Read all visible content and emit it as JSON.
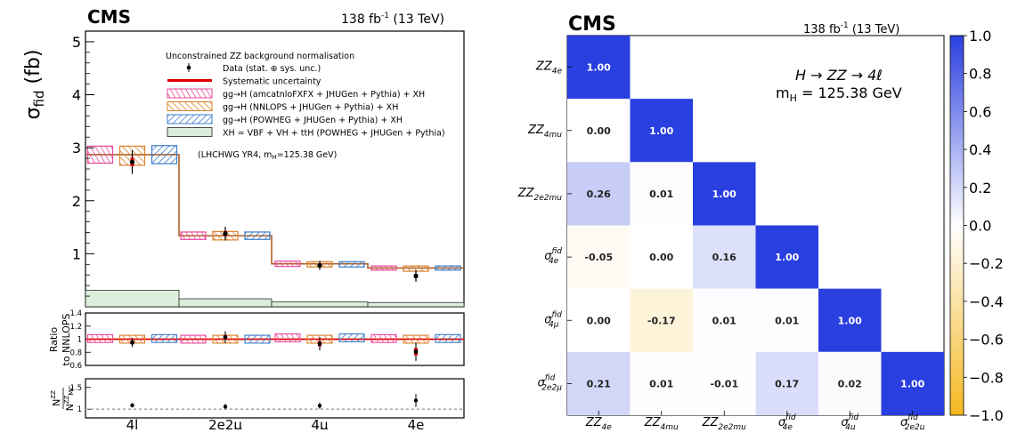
{
  "chart_data": [
    {
      "type": "bar",
      "experiment": "CMS",
      "lumi_label": "138 fb",
      "lumi_exp": "-1",
      "lumi_suffix": " (13 TeV)",
      "ylabel_main": "σ",
      "ylabel_sub": "fid",
      "ylabel_unit": " (fb)",
      "ratio_ylabel_1": "Ratio",
      "ratio_ylabel_2": "to NNLOPS",
      "norm_ylabel_num": "N",
      "norm_ylabel_den": "N",
      "norm_sup": "ZZ",
      "norm_sub_num": "",
      "norm_sub_den": "MC",
      "categories": [
        "4l",
        "2e2μ",
        "4μ",
        "4e"
      ],
      "ylim": [
        0,
        5.2
      ],
      "ratio_ylim": [
        0.6,
        1.4
      ],
      "norm_ylim": [
        0.8,
        1.7
      ],
      "legend": {
        "title": "Unconstrained ZZ background normalisation",
        "entries": [
          {
            "key": "data",
            "label": "Data (stat. ⊕ sys. unc.)"
          },
          {
            "key": "sys",
            "label": "Systematic uncertainty"
          },
          {
            "key": "amc",
            "label": "gg→H (amcatnloFXFX + JHUGen + Pythia) + XH"
          },
          {
            "key": "nnlops",
            "label": "gg→H (NNLOPS + JHUGen + Pythia) + XH"
          },
          {
            "key": "powheg",
            "label": "gg→H (POWHEG + JHUGen + Pythia) + XH"
          },
          {
            "key": "xh",
            "label": "XH = VBF + VH + ttH (POWHEG + JHUGen + Pythia)"
          }
        ],
        "note": "(LHCHWG YR4, m",
        "note_sub": "H",
        "note_tail": "=125.38 GeV)"
      },
      "colors": {
        "amc": "#e8489a",
        "nnlops": "#d9822b",
        "powheg": "#3d7cc9",
        "xh": "#dbeedb",
        "sys": "#e00000",
        "step": "#b0602a"
      },
      "series": [
        {
          "key": "data",
          "values": [
            2.73,
            1.38,
            0.78,
            0.58
          ],
          "stat_err": [
            0.21,
            0.12,
            0.08,
            0.1
          ],
          "sys_err": [
            0.08,
            0.05,
            0.03,
            0.04
          ]
        },
        {
          "key": "amc",
          "values": [
            2.87,
            1.34,
            0.81,
            0.73
          ],
          "unc": [
            0.16,
            0.07,
            0.05,
            0.04
          ]
        },
        {
          "key": "nnlops",
          "values": [
            2.85,
            1.34,
            0.8,
            0.72
          ],
          "unc": [
            0.18,
            0.08,
            0.05,
            0.05
          ]
        },
        {
          "key": "powheg",
          "values": [
            2.87,
            1.34,
            0.8,
            0.73
          ],
          "unc": [
            0.17,
            0.07,
            0.05,
            0.04
          ]
        },
        {
          "key": "xh",
          "values": [
            0.31,
            0.15,
            0.09,
            0.08
          ]
        }
      ],
      "step_values": [
        2.87,
        1.34,
        0.81,
        0.73
      ],
      "ratio": {
        "data": [
          0.95,
          1.03,
          0.93,
          0.81
        ],
        "data_err": [
          0.07,
          0.09,
          0.1,
          0.14
        ],
        "amc": [
          1.01,
          1.0,
          1.02,
          1.01
        ],
        "nnlops": [
          1.0,
          1.0,
          1.0,
          1.0
        ],
        "powheg": [
          1.01,
          1.0,
          1.02,
          1.01
        ],
        "unc": [
          0.06,
          0.06,
          0.06,
          0.06
        ]
      },
      "norm": {
        "values": [
          1.09,
          1.06,
          1.08,
          1.2
        ],
        "err": [
          0.05,
          0.06,
          0.07,
          0.15
        ]
      }
    },
    {
      "type": "heatmap",
      "experiment": "CMS",
      "lumi_label": "138 fb",
      "lumi_exp": "-1",
      "lumi_suffix": " (13 TeV)",
      "annotation_line1": "H → ZZ → 4ℓ",
      "annotation_line2": "m",
      "annotation_line2_sub": "H",
      "annotation_line2_tail": " = 125.38 GeV",
      "row_labels": [
        {
          "base": "ZZ",
          "sub": "4e",
          "sup": ""
        },
        {
          "base": "ZZ",
          "sub": "4mu",
          "sup": ""
        },
        {
          "base": "ZZ",
          "sub": "2e2mu",
          "sup": ""
        },
        {
          "base": "σ",
          "sub": "4e",
          "sup": "fid"
        },
        {
          "base": "σ",
          "sub": "4μ",
          "sup": "fid"
        },
        {
          "base": "σ",
          "sub": "2e2μ",
          "sup": "fid"
        }
      ],
      "col_labels": [
        {
          "base": "ZZ",
          "sub": "4e",
          "sup": ""
        },
        {
          "base": "ZZ",
          "sub": "4mu",
          "sup": ""
        },
        {
          "base": "ZZ",
          "sub": "2e2mu",
          "sup": ""
        },
        {
          "base": "σ",
          "sub": "4e",
          "sup": "fid"
        },
        {
          "base": "σ",
          "sub": "4μ",
          "sup": "fid"
        },
        {
          "base": "σ",
          "sub": "2e2μ",
          "sup": "fid"
        }
      ],
      "values": [
        [
          1.0,
          null,
          null,
          null,
          null,
          null
        ],
        [
          0.0,
          1.0,
          null,
          null,
          null,
          null
        ],
        [
          0.26,
          0.01,
          1.0,
          null,
          null,
          null
        ],
        [
          -0.05,
          0.0,
          0.16,
          1.0,
          null,
          null
        ],
        [
          0.0,
          -0.17,
          0.01,
          0.01,
          1.0,
          null
        ],
        [
          0.21,
          0.01,
          -0.01,
          0.17,
          0.02,
          1.0
        ]
      ],
      "colorbar": {
        "min": -1.0,
        "max": 1.0,
        "ticks": [
          "1.0",
          "0.8",
          "0.6",
          "0.4",
          "0.2",
          "0.0",
          "−0.2",
          "−0.4",
          "−0.6",
          "−0.8",
          "−1.0"
        ],
        "pos_color": "#2a3fe0",
        "neg_color": "#f5b820"
      }
    }
  ]
}
